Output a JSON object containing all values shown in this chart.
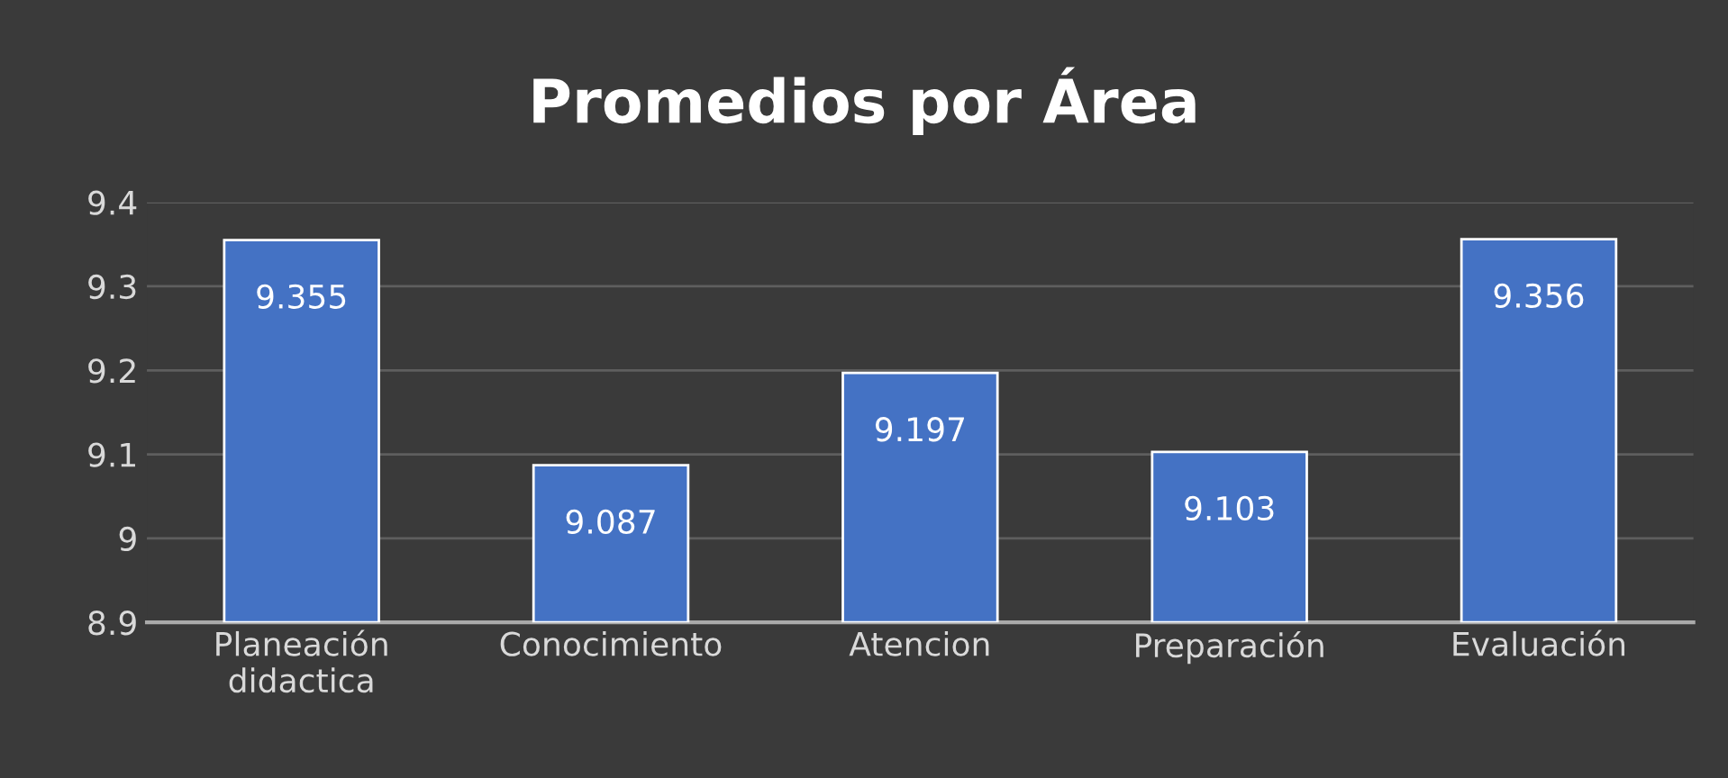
{
  "chart_data": {
    "type": "bar",
    "title": "Promedios por Área",
    "categories": [
      "Planeación didactica",
      "Conocimiento",
      "Atencion",
      "Preparación",
      "Evaluación"
    ],
    "values": [
      9.355,
      9.087,
      9.197,
      9.103,
      9.356
    ],
    "color": "#4472c4",
    "ylim": [
      8.9,
      9.4
    ],
    "yticks": [
      8.9,
      9,
      9.1,
      9.2,
      9.3,
      9.4
    ],
    "grid": "y",
    "data_labels": true
  }
}
